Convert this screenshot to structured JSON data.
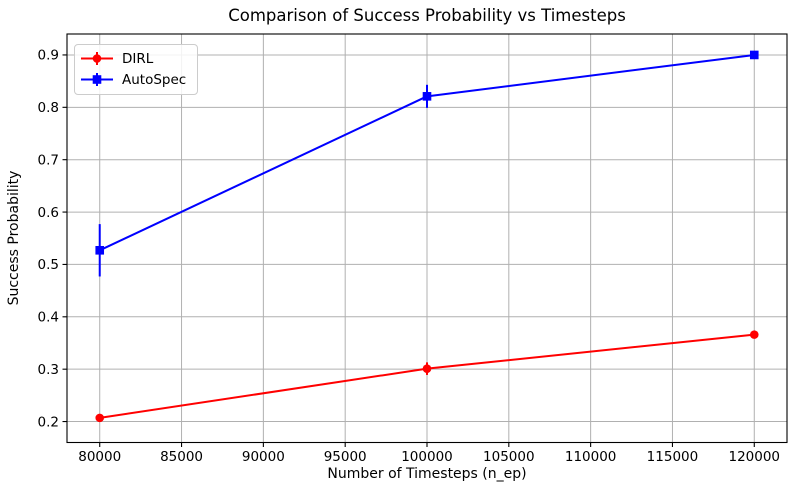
{
  "chart_data": {
    "type": "line",
    "title": "Comparison of Success Probability vs Timesteps",
    "xlabel": "Number of Timesteps (n_ep)",
    "ylabel": "Success Probability",
    "x": [
      80000,
      100000,
      120000
    ],
    "series": [
      {
        "name": "DIRL",
        "color": "#ff0000",
        "marker": "circle",
        "values": [
          0.207,
          0.301,
          0.366
        ],
        "yerr": [
          0.004,
          0.012,
          0.004
        ]
      },
      {
        "name": "AutoSpec",
        "color": "#0000ff",
        "marker": "square",
        "values": [
          0.527,
          0.821,
          0.9
        ],
        "yerr": [
          0.05,
          0.022,
          0.005
        ]
      }
    ],
    "xticks": [
      80000,
      85000,
      90000,
      95000,
      100000,
      105000,
      110000,
      115000,
      120000
    ],
    "yticks": [
      0.2,
      0.3,
      0.4,
      0.5,
      0.6,
      0.7,
      0.8,
      0.9
    ],
    "xlim": [
      78000,
      122000
    ],
    "ylim": [
      0.16,
      0.94
    ],
    "grid": true,
    "grid_color": "#b0b0b0",
    "spine_color": "#000000",
    "legend_position": "upper left"
  }
}
